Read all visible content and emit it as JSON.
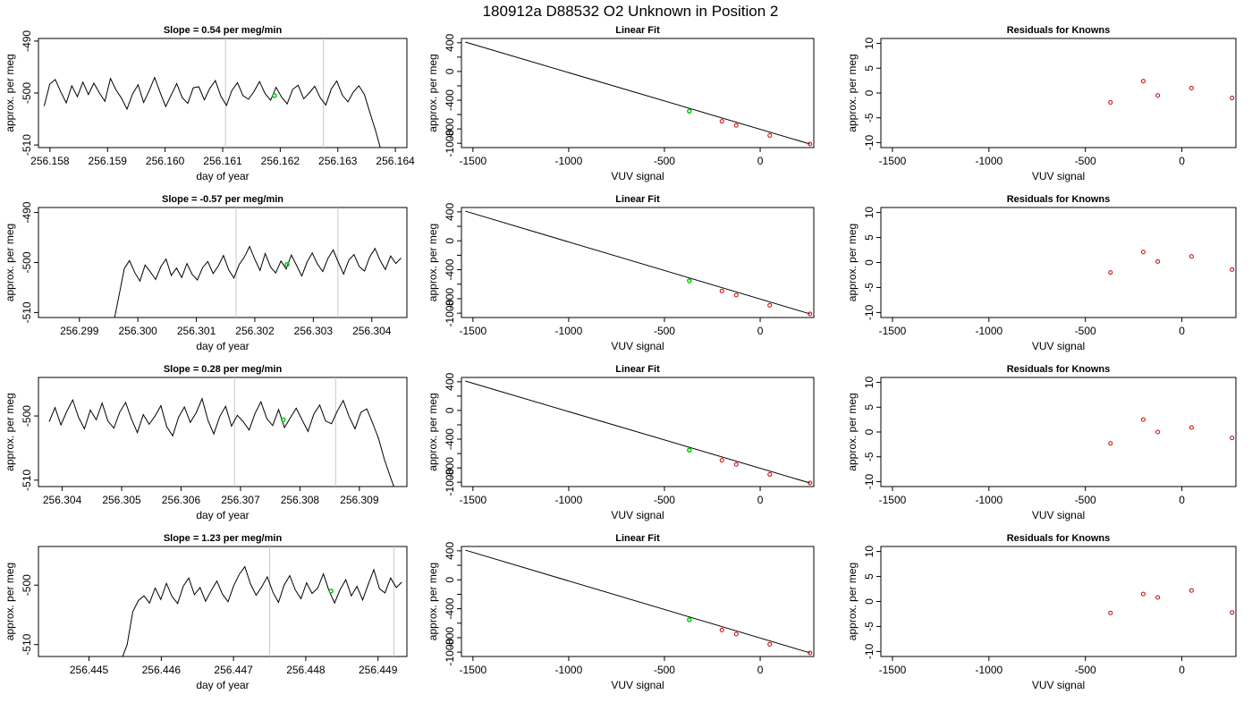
{
  "figure": {
    "title": "180912a     D88532   O2 Unknown in Position  2"
  },
  "colors": {
    "trace": "#000000",
    "marker_vline": "#c8c8c8",
    "unknown_point": "#00cc00",
    "known_point": "#cc0000",
    "fit_line": "#000000"
  },
  "chart_data": [
    {
      "type": "line",
      "row": 0,
      "title": "Slope =  0.54  per meg/min",
      "xlabel": "day of year",
      "ylabel": "approx. per meg",
      "xlim": [
        256.1578,
        256.1642
      ],
      "ylim": [
        -510.5,
        -489.5
      ],
      "xticks": [
        "256.158",
        "256.159",
        "256.160",
        "256.161",
        "256.162",
        "256.163",
        "256.164"
      ],
      "yticks": [
        "-510",
        "-500",
        "-490"
      ],
      "x_start": 256.1579,
      "x_end": 256.16375,
      "vlines": [
        256.16105,
        256.16275
      ],
      "green_point": {
        "x": 256.1619,
        "y": -500.5
      },
      "series": [
        {
          "values": [
            -502.5,
            -498.3,
            -497.4,
            -499.8,
            -501.9,
            -498.6,
            -500.7,
            -497.9,
            -500.3,
            -498.1,
            -500.0,
            -501.6,
            -497.2,
            -499.4,
            -501.0,
            -503.1,
            -500.2,
            -498.4,
            -501.8,
            -499.6,
            -497.0,
            -499.9,
            -502.6,
            -500.4,
            -498.2,
            -500.9,
            -502.0,
            -499.0,
            -498.8,
            -501.3,
            -499.1,
            -497.6,
            -500.6,
            -502.4,
            -499.5,
            -498.0,
            -500.5,
            -501.2,
            -499.7,
            -497.8,
            -500.1,
            -501.4,
            -498.9,
            -500.8,
            -502.1,
            -499.3,
            -498.5,
            -501.1,
            -500.0,
            -498.7,
            -500.9,
            -502.3,
            -499.2,
            -497.7,
            -500.4,
            -501.7,
            -499.8,
            -498.6,
            -500.3,
            -503.8,
            -507.2,
            -511.0
          ]
        }
      ]
    },
    {
      "type": "line",
      "row": 1,
      "title": "Slope =  -0.57  per meg/min",
      "xlabel": "day of year",
      "ylabel": "approx. per meg",
      "xlim": [
        256.2983,
        256.3046
      ],
      "ylim": [
        -511,
        -489
      ],
      "xticks": [
        "256.299",
        "256.300",
        "256.301",
        "256.302",
        "256.303",
        "256.304"
      ],
      "yticks": [
        "-510",
        "-500",
        "-490"
      ],
      "x_start": 256.2995,
      "x_end": 256.3045,
      "vlines": [
        256.30168,
        256.30342
      ],
      "green_point": {
        "x": 256.30255,
        "y": -500.4
      },
      "series": [
        {
          "values": [
            -513.0,
            -511.8,
            -506.5,
            -501.2,
            -499.6,
            -502.0,
            -503.7,
            -500.5,
            -501.9,
            -503.4,
            -500.8,
            -499.3,
            -502.6,
            -501.1,
            -503.0,
            -500.2,
            -502.4,
            -503.5,
            -501.0,
            -499.8,
            -502.2,
            -500.7,
            -498.6,
            -501.5,
            -503.1,
            -500.4,
            -498.9,
            -496.8,
            -499.4,
            -501.6,
            -498.2,
            -500.9,
            -502.1,
            -499.7,
            -501.3,
            -498.5,
            -500.6,
            -502.7,
            -499.9,
            -498.1,
            -500.3,
            -501.8,
            -499.2,
            -497.5,
            -500.0,
            -502.3,
            -499.5,
            -498.4,
            -500.8,
            -501.7,
            -498.9,
            -497.2,
            -499.6,
            -501.4,
            -498.7,
            -500.2,
            -499.1
          ]
        }
      ]
    },
    {
      "type": "line",
      "row": 2,
      "title": "Slope =  0.28  per meg/min",
      "xlabel": "day of year",
      "ylabel": "approx. per meg",
      "xlim": [
        256.3036,
        256.3098
      ],
      "ylim": [
        -511,
        -494
      ],
      "xticks": [
        "256.304",
        "256.305",
        "256.306",
        "256.307",
        "256.308",
        "256.309"
      ],
      "yticks": [
        "-510",
        "-500"
      ],
      "x_start": 256.30378,
      "x_end": 256.30962,
      "vlines": [
        256.3069,
        256.3086
      ],
      "green_point": {
        "x": 256.30772,
        "y": -500.6
      },
      "series": [
        {
          "values": [
            -500.9,
            -498.7,
            -501.4,
            -499.3,
            -497.5,
            -500.2,
            -502.0,
            -499.1,
            -500.6,
            -498.0,
            -500.8,
            -501.9,
            -499.4,
            -497.9,
            -500.5,
            -502.6,
            -499.8,
            -501.3,
            -500.0,
            -498.4,
            -501.7,
            -503.1,
            -500.2,
            -498.6,
            -501.0,
            -499.5,
            -497.3,
            -500.7,
            -502.8,
            -500.1,
            -498.5,
            -501.6,
            -499.9,
            -500.9,
            -502.2,
            -499.6,
            -497.8,
            -500.4,
            -501.5,
            -499.0,
            -501.8,
            -500.3,
            -498.8,
            -500.6,
            -502.4,
            -499.7,
            -498.3,
            -500.8,
            -501.2,
            -499.2,
            -497.6,
            -500.1,
            -502.0,
            -499.4,
            -498.9,
            -501.1,
            -503.5,
            -506.8,
            -509.5,
            -512.0
          ]
        }
      ]
    },
    {
      "type": "line",
      "row": 3,
      "title": "Slope =  1.23  per meg/min",
      "xlabel": "day of year",
      "ylabel": "approx. per meg",
      "xlim": [
        256.4443,
        256.4494
      ],
      "ylim": [
        -512,
        -493.5
      ],
      "xticks": [
        "256.445",
        "256.446",
        "256.447",
        "256.448",
        "256.449"
      ],
      "yticks": [
        "-510",
        "-500"
      ],
      "x_start": 256.44545,
      "x_end": 256.44933,
      "vlines": [
        256.4475,
        256.44922
      ],
      "green_point": {
        "x": 256.44835,
        "y": -501.0
      },
      "series": [
        {
          "values": [
            -512.5,
            -510.0,
            -504.5,
            -502.6,
            -501.8,
            -503.0,
            -500.5,
            -502.4,
            -499.7,
            -501.9,
            -503.1,
            -500.2,
            -498.8,
            -501.6,
            -500.4,
            -502.7,
            -500.9,
            -499.3,
            -501.5,
            -502.8,
            -500.1,
            -498.2,
            -496.9,
            -499.8,
            -501.7,
            -500.3,
            -498.6,
            -501.2,
            -502.9,
            -500.0,
            -498.4,
            -500.8,
            -502.3,
            -499.6,
            -501.4,
            -500.5,
            -498.1,
            -500.9,
            -503.0,
            -500.7,
            -499.1,
            -501.8,
            -500.2,
            -502.5,
            -499.9,
            -497.4,
            -500.6,
            -501.3,
            -498.8,
            -500.4,
            -499.5
          ]
        }
      ]
    },
    {
      "type": "scatter",
      "row": 0,
      "title": "Linear Fit",
      "xlabel": "VUV signal",
      "ylabel": "approx. per meg",
      "xlim": [
        -1560,
        280
      ],
      "ylim": [
        -1060,
        460
      ],
      "xticks": [
        "-1500",
        "-1000",
        "-500",
        "0"
      ],
      "yticks": [
        "-1000",
        "-800",
        "-400",
        "0",
        "400"
      ],
      "line": {
        "x1": -1540,
        "y1": 410,
        "x2": 260,
        "y2": -1010
      },
      "known_points": [
        {
          "x": -200,
          "y": -694
        },
        {
          "x": -125,
          "y": -751
        },
        {
          "x": 50,
          "y": -891
        },
        {
          "x": 260,
          "y": -1010
        }
      ],
      "unknown_point": {
        "x": -370,
        "y": -553
      }
    },
    {
      "type": "scatter",
      "row": 1,
      "title": "Linear Fit",
      "xlabel": "VUV signal",
      "ylabel": "approx. per meg",
      "xlim": [
        -1560,
        280
      ],
      "ylim": [
        -1060,
        460
      ],
      "xticks": [
        "-1500",
        "-1000",
        "-500",
        "0"
      ],
      "yticks": [
        "-1000",
        "-800",
        "-400",
        "0",
        "400"
      ],
      "line": {
        "x1": -1540,
        "y1": 410,
        "x2": 260,
        "y2": -1010
      },
      "known_points": [
        {
          "x": -200,
          "y": -694
        },
        {
          "x": -125,
          "y": -751
        },
        {
          "x": 50,
          "y": -891
        },
        {
          "x": 260,
          "y": -1010
        }
      ],
      "unknown_point": {
        "x": -370,
        "y": -553
      }
    },
    {
      "type": "scatter",
      "row": 2,
      "title": "Linear Fit",
      "xlabel": "VUV signal",
      "ylabel": "approx. per meg",
      "xlim": [
        -1560,
        280
      ],
      "ylim": [
        -1060,
        460
      ],
      "xticks": [
        "-1500",
        "-1000",
        "-500",
        "0"
      ],
      "yticks": [
        "-1000",
        "-800",
        "-400",
        "0",
        "400"
      ],
      "line": {
        "x1": -1540,
        "y1": 410,
        "x2": 260,
        "y2": -1010
      },
      "known_points": [
        {
          "x": -200,
          "y": -694
        },
        {
          "x": -125,
          "y": -751
        },
        {
          "x": 50,
          "y": -891
        },
        {
          "x": 260,
          "y": -1010
        }
      ],
      "unknown_point": {
        "x": -370,
        "y": -553
      }
    },
    {
      "type": "scatter",
      "row": 3,
      "title": "Linear Fit",
      "xlabel": "VUV signal",
      "ylabel": "approx. per meg",
      "xlim": [
        -1560,
        280
      ],
      "ylim": [
        -1060,
        460
      ],
      "xticks": [
        "-1500",
        "-1000",
        "-500",
        "0"
      ],
      "yticks": [
        "-1000",
        "-800",
        "-400",
        "0",
        "400"
      ],
      "line": {
        "x1": -1540,
        "y1": 410,
        "x2": 260,
        "y2": -1010
      },
      "known_points": [
        {
          "x": -200,
          "y": -694
        },
        {
          "x": -125,
          "y": -751
        },
        {
          "x": 50,
          "y": -891
        },
        {
          "x": 260,
          "y": -1010
        }
      ],
      "unknown_point": {
        "x": -370,
        "y": -553
      }
    },
    {
      "type": "scatter",
      "row": 0,
      "title": "Residuals for Knowns",
      "xlabel": "VUV signal",
      "ylabel": "approx. per meg",
      "xlim": [
        -1560,
        280
      ],
      "ylim": [
        -11,
        11
      ],
      "xticks": [
        "-1500",
        "-1000",
        "-500",
        "0"
      ],
      "yticks": [
        "-10",
        "-5",
        "0",
        "5",
        "10"
      ],
      "points": [
        {
          "x": -370,
          "y": -1.9
        },
        {
          "x": -200,
          "y": 2.4
        },
        {
          "x": -125,
          "y": -0.5
        },
        {
          "x": 50,
          "y": 1.0
        },
        {
          "x": 260,
          "y": -1.0
        }
      ]
    },
    {
      "type": "scatter",
      "row": 1,
      "title": "Residuals for Knowns",
      "xlabel": "VUV signal",
      "ylabel": "approx. per meg",
      "xlim": [
        -1560,
        280
      ],
      "ylim": [
        -11,
        11
      ],
      "xticks": [
        "-1500",
        "-1000",
        "-500",
        "0"
      ],
      "yticks": [
        "-10",
        "-5",
        "0",
        "5",
        "10"
      ],
      "points": [
        {
          "x": -370,
          "y": -2.0
        },
        {
          "x": -200,
          "y": 2.1
        },
        {
          "x": -125,
          "y": 0.2
        },
        {
          "x": 50,
          "y": 1.2
        },
        {
          "x": 260,
          "y": -1.4
        }
      ]
    },
    {
      "type": "scatter",
      "row": 2,
      "title": "Residuals for Knowns",
      "xlabel": "VUV signal",
      "ylabel": "approx. per meg",
      "xlim": [
        -1560,
        280
      ],
      "ylim": [
        -11,
        11
      ],
      "xticks": [
        "-1500",
        "-1000",
        "-500",
        "0"
      ],
      "yticks": [
        "-10",
        "-5",
        "0",
        "5",
        "10"
      ],
      "points": [
        {
          "x": -370,
          "y": -2.3
        },
        {
          "x": -200,
          "y": 2.5
        },
        {
          "x": -125,
          "y": 0.0
        },
        {
          "x": 50,
          "y": 0.9
        },
        {
          "x": 260,
          "y": -1.2
        }
      ]
    },
    {
      "type": "scatter",
      "row": 3,
      "title": "Residuals for Knowns",
      "xlabel": "VUV signal",
      "ylabel": "approx. per meg",
      "xlim": [
        -1560,
        280
      ],
      "ylim": [
        -11,
        11
      ],
      "xticks": [
        "-1500",
        "-1000",
        "-500",
        "0"
      ],
      "yticks": [
        "-10",
        "-5",
        "0",
        "5",
        "10"
      ],
      "points": [
        {
          "x": -370,
          "y": -2.3
        },
        {
          "x": -200,
          "y": 1.5
        },
        {
          "x": -125,
          "y": 0.8
        },
        {
          "x": 50,
          "y": 2.2
        },
        {
          "x": 260,
          "y": -2.2
        }
      ]
    }
  ]
}
